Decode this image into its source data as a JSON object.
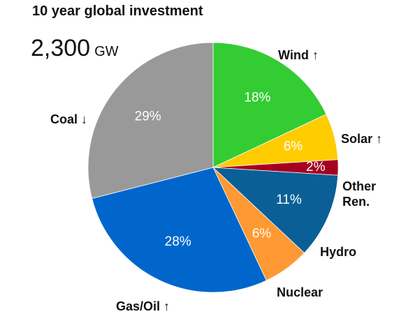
{
  "chart_data": {
    "type": "pie",
    "title": "10 year global investment",
    "total": {
      "value": 2300,
      "label": "2,300"
    },
    "total_unit": "GW",
    "categories": [
      "Wind ↑",
      "Solar ↑",
      "Other Ren.",
      "Hydro",
      "Nuclear",
      "Gas/Oil ↑",
      "Coal ↓"
    ],
    "values": [
      18,
      6,
      2,
      11,
      6,
      28,
      29
    ],
    "value_labels": [
      "18%",
      "6%",
      "2%",
      "11%",
      "6%",
      "28%",
      "29%"
    ],
    "colors": [
      "#33cc33",
      "#ffcc00",
      "#a50021",
      "#0a5f96",
      "#ff9933",
      "#0066cc",
      "#999999"
    ]
  }
}
